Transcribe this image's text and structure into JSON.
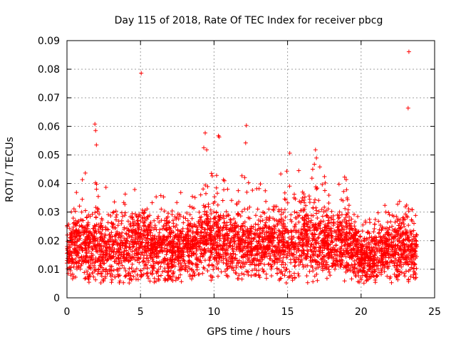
{
  "chart_data": {
    "type": "scatter",
    "title": "Day 115 of 2018, Rate Of TEC Index for receiver pbcg",
    "xlabel": "GPS time / hours",
    "ylabel": "ROTI / TECUs",
    "xlim": [
      0,
      25
    ],
    "ylim": [
      0,
      0.09
    ],
    "grid": true,
    "x_ticks": [
      0,
      5,
      10,
      15,
      20,
      25
    ],
    "x_tick_labels": [
      "0",
      "5",
      "10",
      "15",
      "20",
      "25"
    ],
    "y_ticks": [
      0,
      0.01,
      0.02,
      0.03,
      0.04,
      0.05,
      0.06,
      0.07,
      0.08,
      0.09
    ],
    "y_tick_labels": [
      "0",
      "0.01",
      "0.02",
      "0.03",
      "0.04",
      "0.05",
      "0.06",
      "0.07",
      "0.08",
      "0.09"
    ],
    "marker": "+",
    "marker_color": "#ff0000",
    "outliers": [
      {
        "x": 5.05,
        "y": 0.0786
      },
      {
        "x": 23.25,
        "y": 0.0861
      },
      {
        "x": 23.2,
        "y": 0.0664
      },
      {
        "x": 1.9,
        "y": 0.0608
      },
      {
        "x": 12.2,
        "y": 0.0603
      },
      {
        "x": 1.95,
        "y": 0.0585
      },
      {
        "x": 9.4,
        "y": 0.0577
      },
      {
        "x": 10.3,
        "y": 0.0567
      },
      {
        "x": 10.35,
        "y": 0.0563
      },
      {
        "x": 12.15,
        "y": 0.0542
      },
      {
        "x": 2.0,
        "y": 0.0535
      },
      {
        "x": 16.9,
        "y": 0.0518
      },
      {
        "x": 15.15,
        "y": 0.0506
      },
      {
        "x": 9.3,
        "y": 0.0525
      },
      {
        "x": 9.5,
        "y": 0.0518
      }
    ],
    "density_profile": [
      {
        "x": 0.0,
        "center": 0.017,
        "spread": 0.0045,
        "peak": 0.025
      },
      {
        "x": 1.0,
        "center": 0.018,
        "spread": 0.006,
        "peak": 0.046
      },
      {
        "x": 2.0,
        "center": 0.018,
        "spread": 0.006,
        "peak": 0.045
      },
      {
        "x": 3.0,
        "center": 0.017,
        "spread": 0.0055,
        "peak": 0.036
      },
      {
        "x": 4.0,
        "center": 0.018,
        "spread": 0.006,
        "peak": 0.037
      },
      {
        "x": 5.0,
        "center": 0.019,
        "spread": 0.006,
        "peak": 0.041
      },
      {
        "x": 6.0,
        "center": 0.018,
        "spread": 0.006,
        "peak": 0.044
      },
      {
        "x": 7.0,
        "center": 0.016,
        "spread": 0.0055,
        "peak": 0.034
      },
      {
        "x": 8.0,
        "center": 0.017,
        "spread": 0.0055,
        "peak": 0.043
      },
      {
        "x": 9.0,
        "center": 0.02,
        "spread": 0.006,
        "peak": 0.047
      },
      {
        "x": 10.0,
        "center": 0.021,
        "spread": 0.006,
        "peak": 0.048
      },
      {
        "x": 11.0,
        "center": 0.019,
        "spread": 0.0055,
        "peak": 0.04
      },
      {
        "x": 12.0,
        "center": 0.019,
        "spread": 0.0055,
        "peak": 0.044
      },
      {
        "x": 13.0,
        "center": 0.018,
        "spread": 0.0055,
        "peak": 0.041
      },
      {
        "x": 14.0,
        "center": 0.018,
        "spread": 0.006,
        "peak": 0.046
      },
      {
        "x": 15.0,
        "center": 0.018,
        "spread": 0.006,
        "peak": 0.045
      },
      {
        "x": 16.0,
        "center": 0.022,
        "spread": 0.007,
        "peak": 0.047
      },
      {
        "x": 17.0,
        "center": 0.021,
        "spread": 0.007,
        "peak": 0.05
      },
      {
        "x": 18.0,
        "center": 0.019,
        "spread": 0.0055,
        "peak": 0.04
      },
      {
        "x": 19.0,
        "center": 0.02,
        "spread": 0.006,
        "peak": 0.044
      },
      {
        "x": 20.0,
        "center": 0.014,
        "spread": 0.0045,
        "peak": 0.027
      },
      {
        "x": 21.0,
        "center": 0.016,
        "spread": 0.005,
        "peak": 0.03
      },
      {
        "x": 22.0,
        "center": 0.018,
        "spread": 0.0055,
        "peak": 0.037
      },
      {
        "x": 23.0,
        "center": 0.017,
        "spread": 0.0055,
        "peak": 0.035
      },
      {
        "x": 23.8,
        "center": 0.016,
        "spread": 0.005,
        "peak": 0.028
      }
    ],
    "floor": 0.005,
    "x_start": 0.0,
    "x_end": 23.8,
    "points_per_hour": 170,
    "seed": 11518
  }
}
